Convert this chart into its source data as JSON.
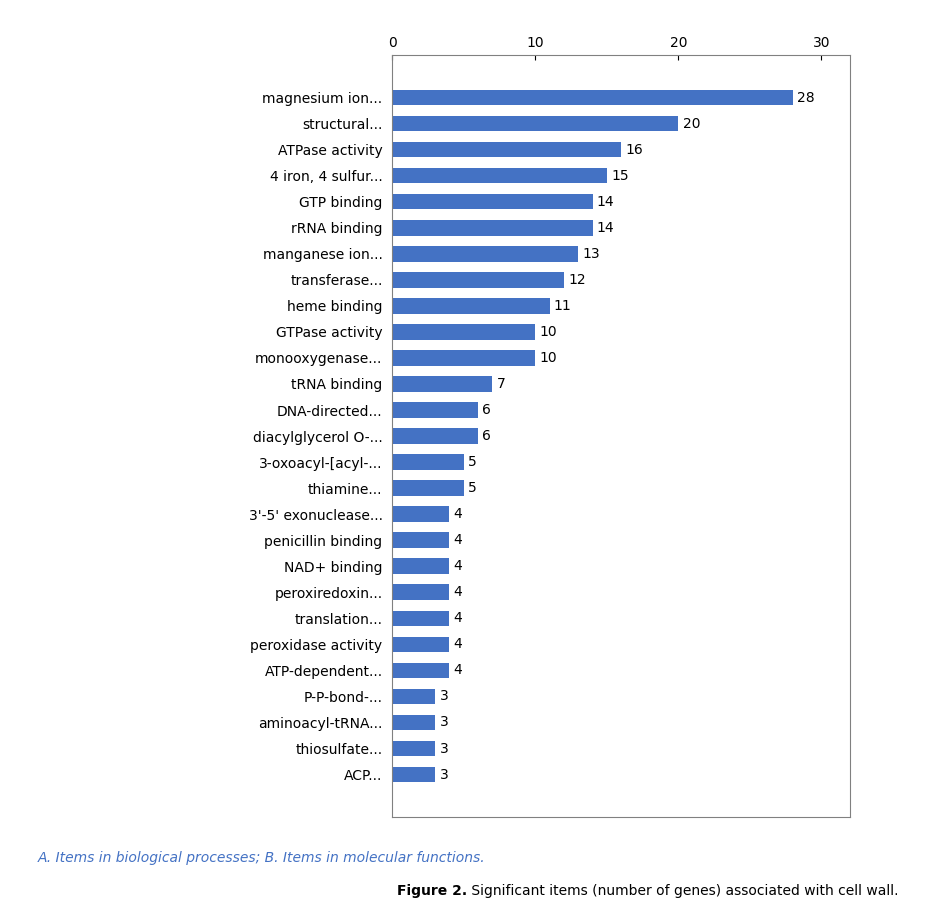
{
  "categories": [
    "magnesium ion...",
    "structural...",
    "ATPase activity",
    "4 iron, 4 sulfur...",
    "GTP binding",
    "rRNA binding",
    "manganese ion...",
    "transferase...",
    "heme binding",
    "GTPase activity",
    "monooxygenase...",
    "tRNA binding",
    "DNA-directed...",
    "diacylglycerol O-...",
    "3-oxoacyl-[acyl-...",
    "thiamine...",
    "3'-5' exonuclease...",
    "penicillin binding",
    "NAD+ binding",
    "peroxiredoxin...",
    "translation...",
    "peroxidase activity",
    "ATP-dependent...",
    "P-P-bond-...",
    "aminoacyl-tRNA...",
    "thiosulfate...",
    "ACP..."
  ],
  "values": [
    28,
    20,
    16,
    15,
    14,
    14,
    13,
    12,
    11,
    10,
    10,
    7,
    6,
    6,
    5,
    5,
    4,
    4,
    4,
    4,
    4,
    4,
    4,
    3,
    3,
    3,
    3
  ],
  "bar_color": "#4472c4",
  "xlim": [
    0,
    32
  ],
  "xticks": [
    0,
    10,
    20,
    30
  ],
  "caption_A": "A. Items in biological processes; B. Items in molecular functions.",
  "caption_B_bold": "Figure 2.",
  "caption_B_normal": " Significant items (number of genes) associated with cell wall.",
  "figure_width": 9.34,
  "figure_height": 9.18,
  "font_size_labels": 10,
  "font_size_values": 10,
  "font_size_ticks": 10,
  "font_size_caption": 10,
  "font_size_figure_caption": 10
}
